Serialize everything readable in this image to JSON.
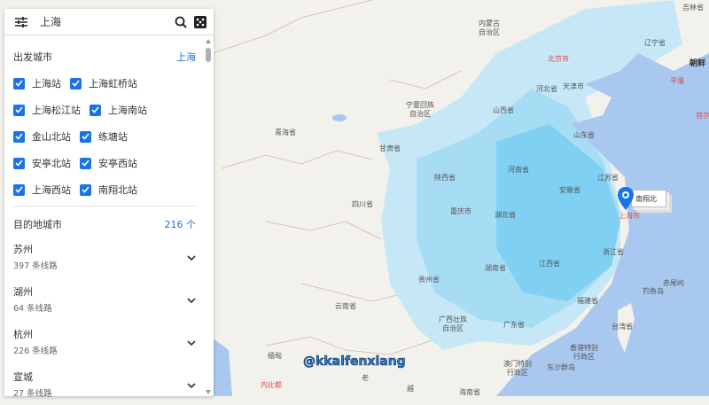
{
  "search": {
    "query": "上海",
    "filter_icon": "tune-icon",
    "search_icon": "search-icon",
    "dice_icon": "dice-icon"
  },
  "origin": {
    "title": "出发城市",
    "city": "上海",
    "stations": [
      {
        "label": "上海站",
        "checked": true
      },
      {
        "label": "上海虹桥站",
        "checked": true
      },
      {
        "label": "上海松江站",
        "checked": true
      },
      {
        "label": "上海南站",
        "checked": true
      },
      {
        "label": "金山北站",
        "checked": true
      },
      {
        "label": "练塘站",
        "checked": true
      },
      {
        "label": "安亭北站",
        "checked": true
      },
      {
        "label": "安亭西站",
        "checked": true
      },
      {
        "label": "上海西站",
        "checked": true
      },
      {
        "label": "南翔北站",
        "checked": true
      }
    ]
  },
  "destination": {
    "title": "目的地城市",
    "count": "216 个",
    "items": [
      {
        "name": "苏州",
        "routes": "397 条线路"
      },
      {
        "name": "湖州",
        "routes": "64 条线路"
      },
      {
        "name": "杭州",
        "routes": "226 条线路"
      },
      {
        "name": "宣城",
        "routes": "27 条线路"
      }
    ]
  },
  "map": {
    "labels": [
      "内蒙古\n自治区",
      "北京市",
      "天津市",
      "辽宁省",
      "朝鲜",
      "平壤",
      "首尔",
      "河北省",
      "山西省",
      "山东省",
      "宁夏回族\n自治区",
      "甘肃省",
      "青海省",
      "陕西省",
      "河南省",
      "江苏省",
      "安徽省",
      "四川省",
      "重庆市",
      "湖北省",
      "浙江省",
      "上海市",
      "湖南省",
      "江西省",
      "贵州省",
      "云南省",
      "福建省",
      "广西壮族\n自治区",
      "广东省",
      "台湾省",
      "香港特别\n行政区",
      "澳门特别\n行政区",
      "东沙群岛",
      "钓鱼岛",
      "赤尾屿",
      "缅甸",
      "内比都",
      "老",
      "越",
      "海南省",
      "吉林省"
    ],
    "pin_label": "南翔北",
    "watermark": "@kkaifenxiang",
    "colors": {
      "land": "#f3f1ec",
      "sea": "#a9c8f0",
      "route_light": "#c6e8f6",
      "route_mid": "#8fd3f2",
      "route_dark": "#5cc2f0",
      "pin": "#1a73e8"
    }
  }
}
